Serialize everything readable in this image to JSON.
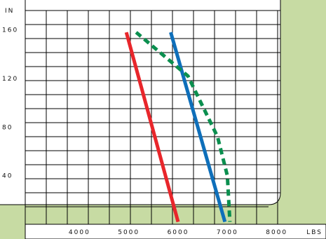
{
  "chart_data": {
    "type": "line",
    "x_unit": "LBS",
    "y_unit": "IN",
    "x_ticks": [
      4000,
      5000,
      6000,
      7000,
      8000
    ],
    "y_ticks": [
      40,
      80,
      120,
      160
    ],
    "xlim": [
      2900,
      9000
    ],
    "ylim": [
      0,
      180
    ],
    "grid": true,
    "series": [
      {
        "color": "#e8262b",
        "style": "solid",
        "points": [
          [
            4950,
            158
          ],
          [
            6000,
            2
          ]
        ]
      },
      {
        "color": "#0e6fba",
        "style": "solid",
        "points": [
          [
            5850,
            158
          ],
          [
            6950,
            2
          ]
        ]
      },
      {
        "color": "#0b8f4f",
        "style": "dashed",
        "points": [
          [
            5150,
            158
          ],
          [
            6200,
            122
          ],
          [
            6800,
            72
          ],
          [
            7000,
            40
          ],
          [
            7050,
            2
          ]
        ]
      }
    ]
  },
  "colors": {
    "background": "#c7dba3",
    "panel": "#ffffff",
    "grid": "#000000"
  }
}
